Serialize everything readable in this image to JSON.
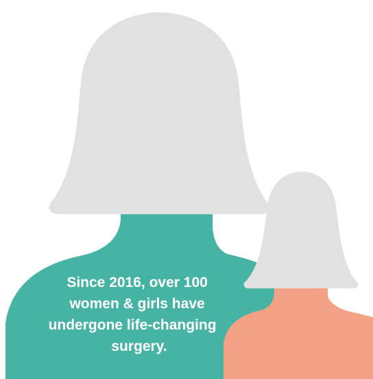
{
  "caption": {
    "lines": [
      "Since 2016, over 100",
      "women & girls have",
      "undergone life-changing",
      "surgery."
    ]
  }
}
